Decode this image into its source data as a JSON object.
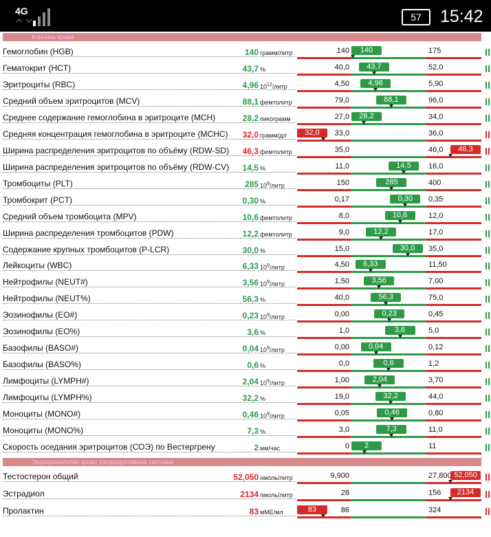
{
  "status_bar": {
    "network": "4G",
    "battery": "57",
    "time": "15:42"
  },
  "sections": [
    {
      "title": "Клиника крови",
      "rows": [
        {
          "name": "Гемоглобин (HGB)",
          "value": "140",
          "unit": "грамм/литр",
          "low": "140",
          "high": "175"
        },
        {
          "name": "Гематокрит (HCT)",
          "value": "43,7",
          "unit": "%",
          "low": "40,0",
          "high": "52,0"
        },
        {
          "name": "Эритроциты (RBC)",
          "value": "4,96",
          "unit": "10",
          "unit_sup": "12",
          "unit_tail": "/литр",
          "low": "4,50",
          "high": "5,90"
        },
        {
          "name": "Средний объем эритроцитов (MCV)",
          "value": "88,1",
          "unit": "фемтолитр",
          "low": "79,0",
          "high": "96,0"
        },
        {
          "name": "Среднее содержание гемоглобина в эритроците (MCH)",
          "value": "28,2",
          "unit": "пикограмм",
          "low": "27,0",
          "high": "34,0"
        },
        {
          "name": "Средняя концентрация гемоглобина в эритроците (MCHC)",
          "value": "32,0",
          "unit": "грамм/дл",
          "low": "33,0",
          "high": "36,0"
        },
        {
          "name": "Ширина распределения эритроцитов по объёму (RDW-SD)",
          "value": "46,3",
          "unit": "фемтолитр",
          "low": "35,0",
          "high": "46,0"
        },
        {
          "name": "Ширина распределения эритроцитов по объёму (RDW-CV)",
          "value": "14,5",
          "unit": "%",
          "low": "11,0",
          "high": "16,0"
        },
        {
          "name": "Тромбоциты (PLT)",
          "value": "285",
          "unit": "10",
          "unit_sup": "9",
          "unit_tail": "/литр",
          "low": "150",
          "high": "400"
        },
        {
          "name": "Тромбокрит (PCT)",
          "value": "0,30",
          "unit": "%",
          "low": "0,17",
          "high": "0,35"
        },
        {
          "name": "Средний объем тромбоцита (MPV)",
          "value": "10,6",
          "unit": "фемтолитр",
          "low": "8,0",
          "high": "12,0"
        },
        {
          "name": "Ширина распределения тромбоцитов (PDW)",
          "value": "12,2",
          "unit": "фемтолитр",
          "low": "9,0",
          "high": "17,0"
        },
        {
          "name": "Содержание крупных тромбоцитов (P-LCR)",
          "value": "30,0",
          "unit": "%",
          "low": "15,0",
          "high": "35,0"
        },
        {
          "name": "Лейкоциты (WBC)",
          "value": "6,33",
          "unit": "10",
          "unit_sup": "9",
          "unit_tail": "/литр",
          "low": "4,50",
          "high": "11,50"
        },
        {
          "name": "Нейтрофилы (NEUT#)",
          "value": "3,56",
          "unit": "10",
          "unit_sup": "9",
          "unit_tail": "/литр",
          "low": "1,50",
          "high": "7,00"
        },
        {
          "name": "Нейтрофилы (NEUT%)",
          "value": "56,3",
          "unit": "%",
          "low": "40,0",
          "high": "75,0"
        },
        {
          "name": "Эозинофилы (EO#)",
          "value": "0,23",
          "unit": "10",
          "unit_sup": "9",
          "unit_tail": "/литр",
          "low": "0,00",
          "high": "0,45"
        },
        {
          "name": "Эозинофилы (EO%)",
          "value": "3,6",
          "unit": "%",
          "low": "1,0",
          "high": "5,0"
        },
        {
          "name": "Базофилы (BASO#)",
          "value": "0,04",
          "unit": "10",
          "unit_sup": "9",
          "unit_tail": "/литр",
          "low": "0,00",
          "high": "0,12"
        },
        {
          "name": "Базофилы (BASO%)",
          "value": "0,6",
          "unit": "%",
          "low": "0,0",
          "high": "1,2"
        },
        {
          "name": "Лимфоциты (LYMPH#)",
          "value": "2,04",
          "unit": "10",
          "unit_sup": "9",
          "unit_tail": "/литр",
          "low": "1,00",
          "high": "3,70"
        },
        {
          "name": "Лимфоциты (LYMPH%)",
          "value": "32,2",
          "unit": "%",
          "low": "19,0",
          "high": "44,0"
        },
        {
          "name": "Моноциты (MONO#)",
          "value": "0,46",
          "unit": "10",
          "unit_sup": "9",
          "unit_tail": "/литр",
          "low": "0,05",
          "high": "0,80"
        },
        {
          "name": "Моноциты (MONO%)",
          "value": "7,3",
          "unit": "%",
          "low": "3,0",
          "high": "11,0"
        },
        {
          "name": "Скорость оседания эритроцитов (СОЭ) по Вестергрену",
          "value": "2",
          "unit": "мм/час",
          "low": "0",
          "high": "11"
        }
      ]
    },
    {
      "title": "Эндокринология крови /репродуктивная система/",
      "rows": [
        {
          "name": "Тестостерон общий",
          "value": "52,050",
          "unit": "нмоль/литр",
          "low": "9,900",
          "high": "27,800"
        },
        {
          "name": "Эстрадиол",
          "value": "2134",
          "unit": "пмоль/литр",
          "low": "28",
          "high": "156"
        },
        {
          "name": "Пролактин",
          "value": "83",
          "unit": "мМЕ/мл",
          "low": "86",
          "high": "324"
        }
      ]
    }
  ]
}
